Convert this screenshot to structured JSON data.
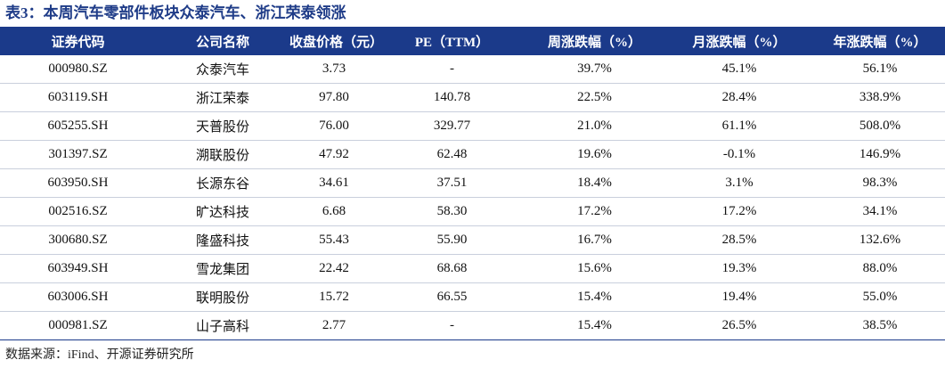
{
  "title": "表3：本周汽车零部件板块众泰汽车、浙江荣泰领涨",
  "table": {
    "header": [
      "证券代码",
      "公司名称",
      "收盘价格（元）",
      "PE（TTM）",
      "周涨跌幅（%）",
      "月涨跌幅（%）",
      "年涨跌幅（%）"
    ],
    "rows": [
      [
        "000980.SZ",
        "众泰汽车",
        "3.73",
        "-",
        "39.7%",
        "45.1%",
        "56.1%"
      ],
      [
        "603119.SH",
        "浙江荣泰",
        "97.80",
        "140.78",
        "22.5%",
        "28.4%",
        "338.9%"
      ],
      [
        "605255.SH",
        "天普股份",
        "76.00",
        "329.77",
        "21.0%",
        "61.1%",
        "508.0%"
      ],
      [
        "301397.SZ",
        "溯联股份",
        "47.92",
        "62.48",
        "19.6%",
        "-0.1%",
        "146.9%"
      ],
      [
        "603950.SH",
        "长源东谷",
        "34.61",
        "37.51",
        "18.4%",
        "3.1%",
        "98.3%"
      ],
      [
        "002516.SZ",
        "旷达科技",
        "6.68",
        "58.30",
        "17.2%",
        "17.2%",
        "34.1%"
      ],
      [
        "300680.SZ",
        "隆盛科技",
        "55.43",
        "55.90",
        "16.7%",
        "28.5%",
        "132.6%"
      ],
      [
        "603949.SH",
        "雪龙集团",
        "22.42",
        "68.68",
        "15.6%",
        "19.3%",
        "88.0%"
      ],
      [
        "603006.SH",
        "联明股份",
        "15.72",
        "66.55",
        "15.4%",
        "19.4%",
        "55.0%"
      ],
      [
        "000981.SZ",
        "山子高科",
        "2.77",
        "-",
        "15.4%",
        "26.5%",
        "38.5%"
      ]
    ]
  },
  "source": "数据来源：iFind、开源证券研究所"
}
